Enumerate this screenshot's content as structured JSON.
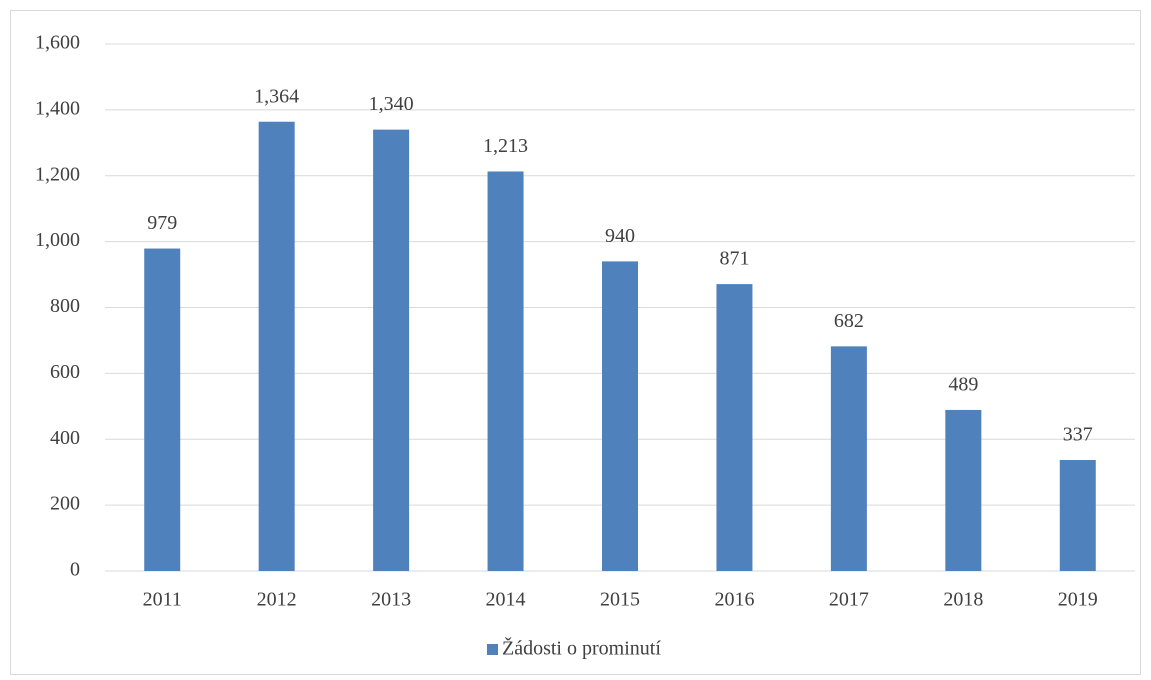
{
  "chart_data": {
    "type": "bar",
    "categories": [
      "2011",
      "2012",
      "2013",
      "2014",
      "2015",
      "2016",
      "2017",
      "2018",
      "2019"
    ],
    "series": [
      {
        "name": "Žádosti o prominutí",
        "color": "#4f81bd",
        "values": [
          979,
          1364,
          1340,
          1213,
          940,
          871,
          682,
          489,
          337
        ],
        "value_labels": [
          "979",
          "1,364",
          "1,340",
          "1,213",
          "940",
          "871",
          "682",
          "489",
          "337"
        ]
      }
    ],
    "ylim": [
      0,
      1600
    ],
    "yticks": [
      0,
      200,
      400,
      600,
      800,
      {
        "value": 1000,
        "label": "1,000"
      },
      {
        "value": 1200,
        "label": "1,200"
      },
      {
        "value": 1400,
        "label": "1,400"
      },
      {
        "value": 1600,
        "label": "1,600"
      }
    ],
    "grid": true,
    "legend": "bottom"
  }
}
